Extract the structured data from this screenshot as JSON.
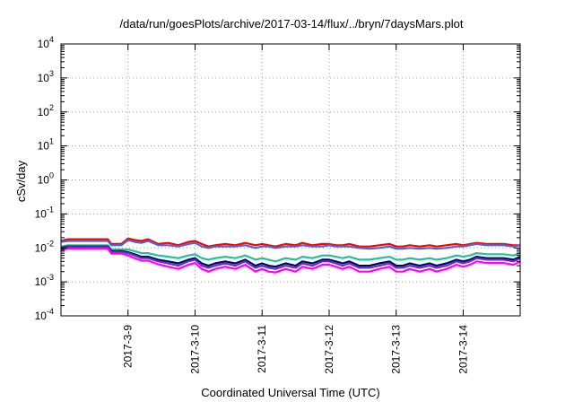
{
  "chart_data": {
    "type": "line",
    "title": "/data/run/goesPlots/archive/2017-03-14/flux/../bryn/7daysMars.plot",
    "xlabel": "Coordinated Universal Time (UTC)",
    "ylabel": "cSv/day",
    "y_scale": "log",
    "ylim": [
      0.0001,
      10000
    ],
    "xlim": [
      0,
      6.85
    ],
    "grid": true,
    "legend": "none",
    "y_ticks": [
      {
        "base": "10",
        "exp": "4",
        "value": 10000
      },
      {
        "base": "10",
        "exp": "3",
        "value": 1000
      },
      {
        "base": "10",
        "exp": "2",
        "value": 100
      },
      {
        "base": "10",
        "exp": "1",
        "value": 10
      },
      {
        "base": "10",
        "exp": "0",
        "value": 1
      },
      {
        "base": "10",
        "exp": "-1",
        "value": 0.1
      },
      {
        "base": "10",
        "exp": "-2",
        "value": 0.01
      },
      {
        "base": "10",
        "exp": "-3",
        "value": 0.001
      },
      {
        "base": "10",
        "exp": "-4",
        "value": 0.0001
      }
    ],
    "x_ticks": [
      {
        "label": "2017-3-9",
        "value": 1
      },
      {
        "label": "2017-3-10",
        "value": 2
      },
      {
        "label": "2017-3-11",
        "value": 3
      },
      {
        "label": "2017-3-12",
        "value": 4
      },
      {
        "label": "2017-3-13",
        "value": 5
      },
      {
        "label": "2017-3-14",
        "value": 6
      }
    ],
    "x": [
      0,
      0.1,
      0.4,
      0.7,
      0.75,
      0.9,
      1.0,
      1.1,
      1.2,
      1.3,
      1.45,
      1.6,
      1.75,
      1.9,
      2.0,
      2.1,
      2.2,
      2.3,
      2.45,
      2.6,
      2.75,
      2.9,
      3.0,
      3.1,
      3.2,
      3.35,
      3.5,
      3.6,
      3.75,
      3.9,
      4.0,
      4.1,
      4.2,
      4.3,
      4.45,
      4.6,
      4.75,
      4.9,
      5.0,
      5.1,
      5.2,
      5.35,
      5.5,
      5.6,
      5.75,
      5.9,
      6.0,
      6.1,
      6.2,
      6.35,
      6.5,
      6.6,
      6.75,
      6.85
    ],
    "series": [
      {
        "color": "#ff0000",
        "values": [
          0.016,
          0.018,
          0.018,
          0.018,
          0.013,
          0.013,
          0.019,
          0.017,
          0.016,
          0.018,
          0.013,
          0.014,
          0.012,
          0.015,
          0.016,
          0.013,
          0.011,
          0.012,
          0.013,
          0.012,
          0.014,
          0.012,
          0.013,
          0.012,
          0.011,
          0.013,
          0.012,
          0.014,
          0.012,
          0.013,
          0.013,
          0.012,
          0.012,
          0.013,
          0.011,
          0.011,
          0.012,
          0.013,
          0.011,
          0.011,
          0.012,
          0.011,
          0.012,
          0.011,
          0.012,
          0.013,
          0.012,
          0.013,
          0.014,
          0.013,
          0.013,
          0.013,
          0.012,
          0.012
        ]
      },
      {
        "color": "#4169e1",
        "values": [
          0.015,
          0.016,
          0.016,
          0.016,
          0.012,
          0.012,
          0.017,
          0.015,
          0.014,
          0.016,
          0.012,
          0.012,
          0.011,
          0.013,
          0.014,
          0.011,
          0.01,
          0.011,
          0.011,
          0.011,
          0.012,
          0.01,
          0.011,
          0.011,
          0.01,
          0.011,
          0.011,
          0.012,
          0.011,
          0.011,
          0.012,
          0.011,
          0.011,
          0.011,
          0.01,
          0.0095,
          0.01,
          0.011,
          0.0095,
          0.0095,
          0.01,
          0.0095,
          0.01,
          0.0095,
          0.01,
          0.011,
          0.011,
          0.012,
          0.013,
          0.012,
          0.012,
          0.012,
          0.011,
          0.012
        ]
      },
      {
        "color": "#20c0a0",
        "values": [
          0.011,
          0.012,
          0.012,
          0.012,
          0.009,
          0.009,
          0.009,
          0.008,
          0.007,
          0.007,
          0.006,
          0.0055,
          0.005,
          0.006,
          0.0065,
          0.005,
          0.0045,
          0.005,
          0.0055,
          0.005,
          0.006,
          0.0045,
          0.005,
          0.0045,
          0.004,
          0.005,
          0.0045,
          0.0055,
          0.005,
          0.006,
          0.006,
          0.0055,
          0.005,
          0.0055,
          0.0045,
          0.0045,
          0.005,
          0.0055,
          0.0045,
          0.0045,
          0.005,
          0.0045,
          0.005,
          0.0045,
          0.005,
          0.006,
          0.0055,
          0.006,
          0.007,
          0.0065,
          0.0065,
          0.0065,
          0.006,
          0.007
        ]
      },
      {
        "color": "#000080",
        "values": [
          0.01,
          0.011,
          0.011,
          0.011,
          0.008,
          0.008,
          0.0075,
          0.0065,
          0.0055,
          0.0055,
          0.0045,
          0.004,
          0.0035,
          0.0045,
          0.005,
          0.0035,
          0.003,
          0.0035,
          0.004,
          0.0035,
          0.0045,
          0.003,
          0.0035,
          0.003,
          0.0028,
          0.0035,
          0.003,
          0.004,
          0.0035,
          0.0045,
          0.0045,
          0.004,
          0.0035,
          0.004,
          0.003,
          0.003,
          0.0035,
          0.004,
          0.003,
          0.003,
          0.0035,
          0.003,
          0.0035,
          0.003,
          0.0035,
          0.0045,
          0.004,
          0.0045,
          0.0055,
          0.005,
          0.005,
          0.005,
          0.0045,
          0.0055
        ]
      },
      {
        "color": "#7030a0",
        "values": [
          0.0095,
          0.0105,
          0.0105,
          0.0105,
          0.0075,
          0.0075,
          0.007,
          0.006,
          0.005,
          0.005,
          0.004,
          0.0035,
          0.003,
          0.004,
          0.0045,
          0.003,
          0.0026,
          0.003,
          0.0035,
          0.003,
          0.004,
          0.0026,
          0.003,
          0.0026,
          0.0024,
          0.003,
          0.0026,
          0.0035,
          0.003,
          0.004,
          0.004,
          0.0035,
          0.003,
          0.0035,
          0.0026,
          0.0026,
          0.003,
          0.0035,
          0.0026,
          0.0026,
          0.003,
          0.0026,
          0.003,
          0.0026,
          0.003,
          0.004,
          0.0035,
          0.004,
          0.005,
          0.0045,
          0.0045,
          0.0045,
          0.004,
          0.005
        ]
      },
      {
        "color": "#ff00ff",
        "values": [
          0.0085,
          0.0095,
          0.0095,
          0.0095,
          0.0068,
          0.0068,
          0.006,
          0.005,
          0.0042,
          0.0042,
          0.0033,
          0.0028,
          0.0024,
          0.0032,
          0.0036,
          0.0024,
          0.002,
          0.0024,
          0.0028,
          0.0024,
          0.0032,
          0.002,
          0.0024,
          0.002,
          0.0019,
          0.0024,
          0.002,
          0.0028,
          0.0024,
          0.0032,
          0.0032,
          0.0028,
          0.0024,
          0.0028,
          0.002,
          0.002,
          0.0024,
          0.0028,
          0.002,
          0.002,
          0.0024,
          0.002,
          0.0024,
          0.002,
          0.0024,
          0.0032,
          0.0028,
          0.0032,
          0.004,
          0.0036,
          0.0036,
          0.0036,
          0.0032,
          0.004
        ]
      }
    ]
  }
}
